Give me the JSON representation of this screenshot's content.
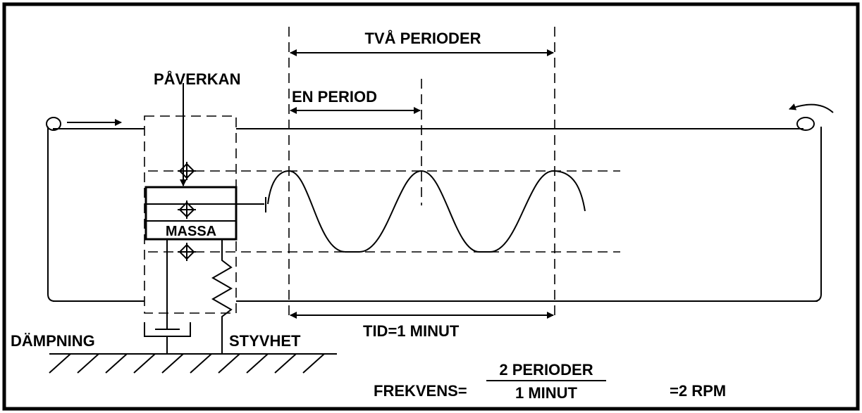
{
  "labels": {
    "two_periods": "TVÅ PERIODER",
    "force": "PÅVERKAN",
    "one_period": "EN PERIOD",
    "mass": "MASSA",
    "damping": "DÄMPNING",
    "stiffness": "STYVHET",
    "time": "TID=1 MINUT",
    "frequency": "FREKVENS=",
    "numerator": "2 PERIODER",
    "denominator": "1 MINUT",
    "result": "=2 RPM"
  }
}
